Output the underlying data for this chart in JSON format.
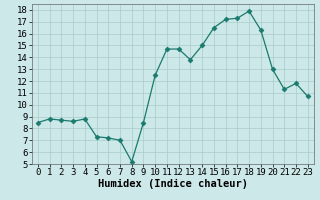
{
  "x": [
    0,
    1,
    2,
    3,
    4,
    5,
    6,
    7,
    8,
    9,
    10,
    11,
    12,
    13,
    14,
    15,
    16,
    17,
    18,
    19,
    20,
    21,
    22,
    23
  ],
  "y": [
    8.5,
    8.8,
    8.7,
    8.6,
    8.8,
    7.3,
    7.2,
    7.0,
    5.2,
    8.5,
    12.5,
    14.7,
    14.7,
    13.8,
    15.0,
    16.5,
    17.2,
    17.3,
    17.9,
    16.3,
    13.0,
    11.3,
    11.8,
    10.7
  ],
  "line_color": "#1a7a6e",
  "marker": "D",
  "marker_size": 2.5,
  "bg_color": "#cce8e8",
  "grid_color": "#aacccc",
  "xlabel": "Humidex (Indice chaleur)",
  "ylim": [
    5,
    18.5
  ],
  "xlim": [
    -0.5,
    23.5
  ],
  "yticks": [
    5,
    6,
    7,
    8,
    9,
    10,
    11,
    12,
    13,
    14,
    15,
    16,
    17,
    18
  ],
  "xticks": [
    0,
    1,
    2,
    3,
    4,
    5,
    6,
    7,
    8,
    9,
    10,
    11,
    12,
    13,
    14,
    15,
    16,
    17,
    18,
    19,
    20,
    21,
    22,
    23
  ],
  "label_fontsize": 7.5,
  "tick_fontsize": 6.5
}
